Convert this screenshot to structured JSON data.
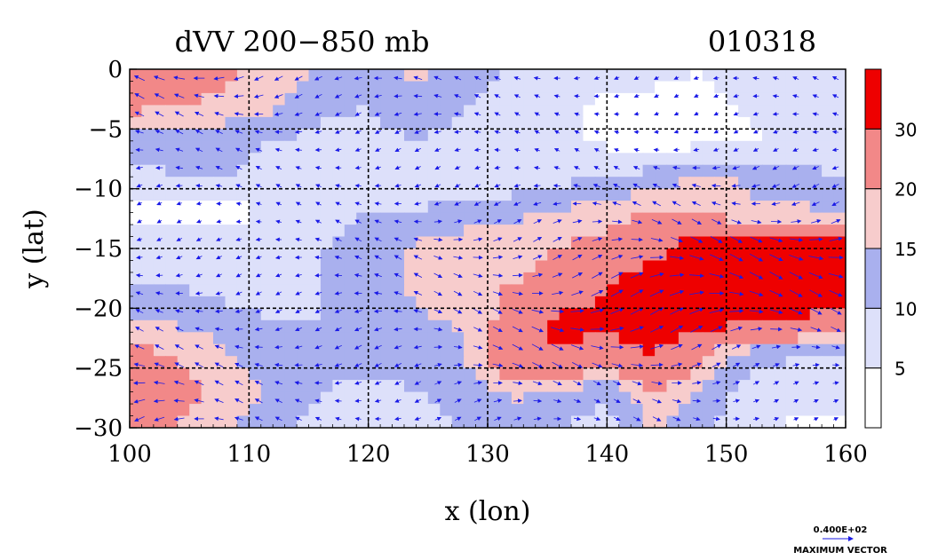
{
  "chart_data": {
    "type": "heatmap",
    "title": "dVV 200−850 mb",
    "date_label": "010318",
    "xlabel": "x (lon)",
    "ylabel": "y (lat)",
    "xlim": [
      100,
      160
    ],
    "ylim": [
      -30,
      0
    ],
    "x_ticks": [
      100,
      110,
      120,
      130,
      140,
      150,
      160
    ],
    "x_tick_labels": [
      "100",
      "110",
      "120",
      "130",
      "140",
      "150",
      "160"
    ],
    "y_ticks": [
      0,
      -5,
      -10,
      -15,
      -20,
      -25,
      -30
    ],
    "y_tick_labels": [
      "0",
      "−5",
      "−10",
      "−15",
      "−20",
      "−25",
      "−30"
    ],
    "grid": true,
    "colorbar": {
      "levels": [
        0,
        5,
        10,
        15,
        20,
        30,
        40
      ],
      "labels": [
        "5",
        "10",
        "15",
        "20",
        "30"
      ],
      "label_values": [
        5,
        10,
        15,
        20,
        30
      ],
      "colors": [
        "#ffffff",
        "#dde0fa",
        "#a9b0ee",
        "#f7cccc",
        "#f28888",
        "#ee0000"
      ]
    },
    "vector_legend": {
      "value": "0.400E+02",
      "label": "MAXIMUM VECTOR",
      "color": "#1a1ae6"
    },
    "field_bands": [
      {
        "lat": 0,
        "values": [
          25,
          25,
          22,
          18,
          14,
          12,
          16,
          12,
          10,
          8,
          6,
          6,
          5,
          8,
          8,
          10
        ]
      },
      {
        "lat": -3,
        "values": [
          22,
          20,
          18,
          16,
          12,
          10,
          14,
          10,
          8,
          6,
          4,
          4,
          3,
          6,
          8,
          8
        ]
      },
      {
        "lat": -6,
        "values": [
          12,
          14,
          12,
          10,
          8,
          8,
          10,
          8,
          6,
          6,
          4,
          3,
          3,
          4,
          6,
          6
        ]
      },
      {
        "lat": -9,
        "values": [
          8,
          10,
          10,
          8,
          6,
          6,
          8,
          6,
          6,
          8,
          10,
          12,
          16,
          14,
          12,
          10
        ]
      },
      {
        "lat": -12,
        "values": [
          4,
          4,
          3,
          6,
          8,
          10,
          10,
          12,
          14,
          16,
          18,
          20,
          18,
          16,
          16,
          14
        ]
      },
      {
        "lat": -15,
        "values": [
          6,
          8,
          8,
          6,
          10,
          12,
          16,
          18,
          18,
          20,
          22,
          28,
          35,
          35,
          35,
          35
        ]
      },
      {
        "lat": -18,
        "values": [
          10,
          10,
          8,
          8,
          10,
          12,
          16,
          18,
          20,
          22,
          30,
          35,
          35,
          35,
          35,
          35
        ]
      },
      {
        "lat": -21,
        "values": [
          16,
          14,
          12,
          10,
          10,
          12,
          14,
          16,
          22,
          32,
          32,
          35,
          35,
          30,
          30,
          26
        ]
      },
      {
        "lat": -24,
        "values": [
          22,
          20,
          16,
          12,
          12,
          14,
          12,
          14,
          26,
          30,
          26,
          30,
          20,
          12,
          10,
          10
        ]
      },
      {
        "lat": -27,
        "values": [
          26,
          22,
          18,
          14,
          10,
          8,
          10,
          12,
          16,
          14,
          10,
          20,
          14,
          8,
          6,
          6
        ]
      },
      {
        "lat": -30,
        "values": [
          22,
          20,
          16,
          12,
          8,
          6,
          8,
          10,
          12,
          10,
          8,
          16,
          10,
          6,
          4,
          4
        ]
      }
    ]
  }
}
